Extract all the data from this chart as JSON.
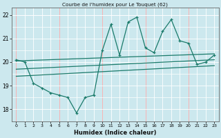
{
  "title": "Courbe de l'humidex pour Le Touquet (62)",
  "xlabel": "Humidex (Indice chaleur)",
  "bg_color": "#cce8ee",
  "grid_color": "#ffffff",
  "grid_red_color": "#ffaaaa",
  "line_color": "#1a7a6a",
  "xlim": [
    -0.5,
    23.5
  ],
  "ylim": [
    17.5,
    22.3
  ],
  "yticks": [
    18,
    19,
    20,
    21,
    22
  ],
  "xticks": [
    0,
    1,
    2,
    3,
    4,
    5,
    6,
    7,
    8,
    9,
    10,
    11,
    12,
    13,
    14,
    15,
    16,
    17,
    18,
    19,
    20,
    21,
    22,
    23
  ],
  "zigzag": {
    "x": [
      0,
      1,
      2,
      3,
      4,
      5,
      6,
      7,
      8,
      9,
      10,
      11,
      12,
      13,
      14,
      15,
      16,
      17,
      18,
      19,
      20,
      21,
      22,
      23
    ],
    "y": [
      20.1,
      20.0,
      19.1,
      18.9,
      18.7,
      18.6,
      18.5,
      17.85,
      18.5,
      18.6,
      20.5,
      21.6,
      20.3,
      21.7,
      21.9,
      20.6,
      20.4,
      21.3,
      21.8,
      20.9,
      20.8,
      19.9,
      20.0,
      20.3
    ]
  },
  "trend_lines": [
    {
      "x": [
        0,
        23
      ],
      "y": [
        20.05,
        20.35
      ]
    },
    {
      "x": [
        0,
        23
      ],
      "y": [
        19.7,
        20.1
      ]
    },
    {
      "x": [
        0,
        23
      ],
      "y": [
        19.4,
        19.85
      ]
    }
  ]
}
